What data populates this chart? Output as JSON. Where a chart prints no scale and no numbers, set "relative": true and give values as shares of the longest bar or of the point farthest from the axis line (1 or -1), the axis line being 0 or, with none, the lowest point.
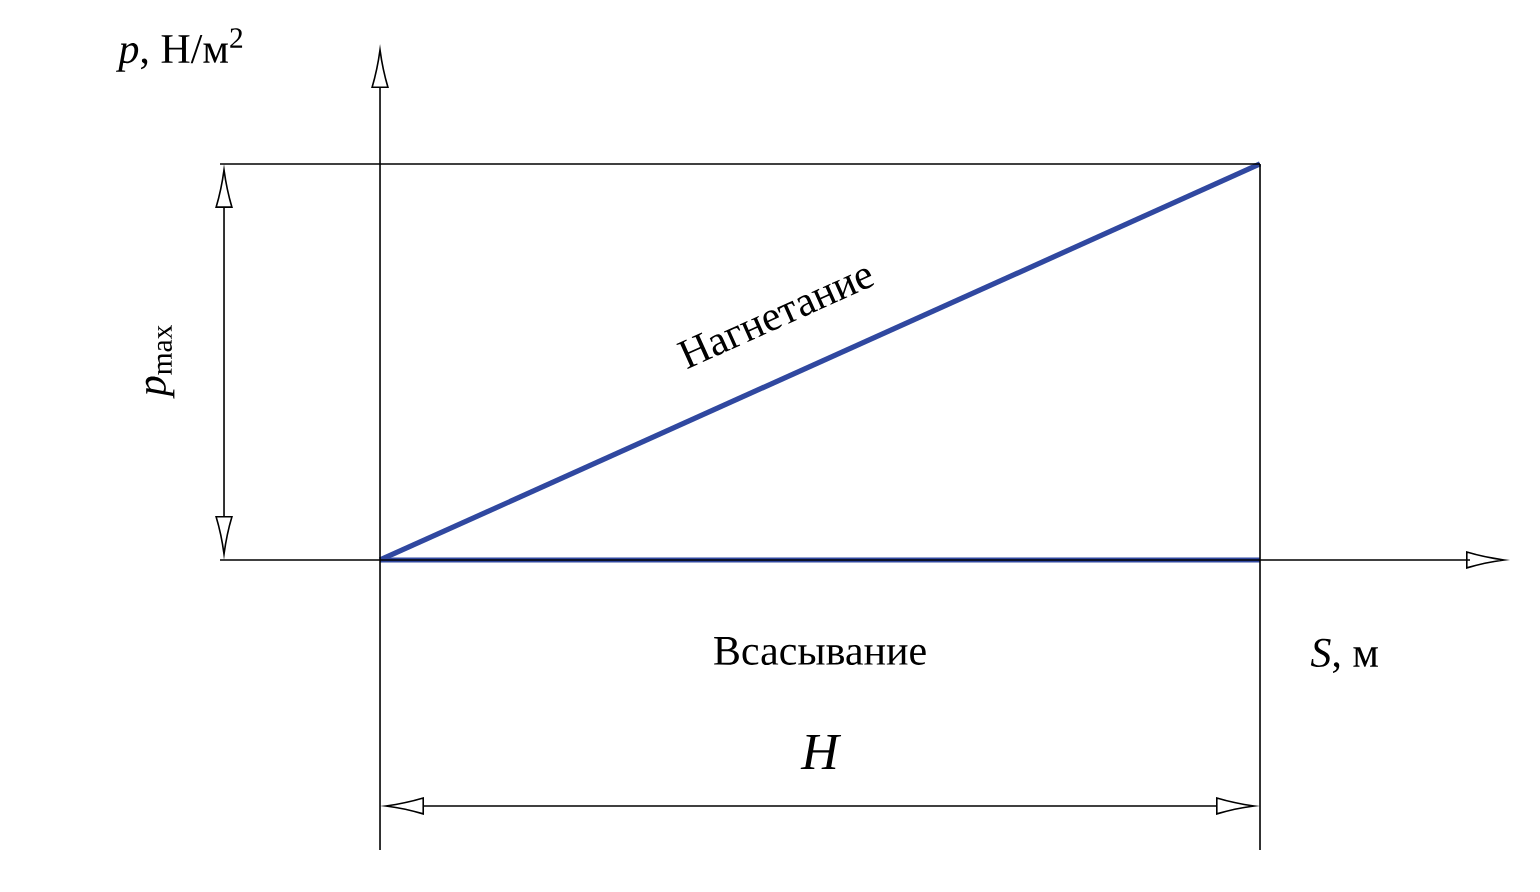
{
  "chart_data": {
    "type": "line",
    "relative": true,
    "categories": [
      null,
      null
    ],
    "xlabel": "*S*, м",
    "ylabel": "*p*, Н/м$^{2}$",
    "series": [
      {
        "name": "Нагнетание",
        "color": "#3048a0",
        "values": [
          0,
          1
        ]
      },
      {
        "name": "Всасывание",
        "color": "#3048a0",
        "values": [
          0,
          0
        ]
      }
    ],
    "annotations": [
      "H",
      "*p*$_{max}$"
    ],
    "line_style": "solid"
  }
}
